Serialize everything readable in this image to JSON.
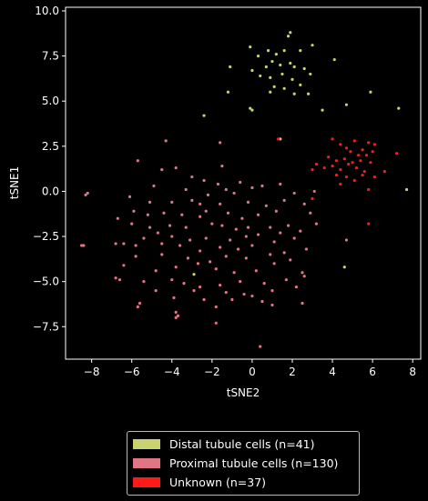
{
  "chart_data": {
    "type": "scatter",
    "xlabel": "tSNE2",
    "ylabel": "tSNE1",
    "xlim": [
      -9.3,
      8.4
    ],
    "ylim": [
      -9.3,
      10.2
    ],
    "xticks": [
      -8,
      -6,
      -4,
      -2,
      0,
      2,
      4,
      6,
      8
    ],
    "yticks": [
      -7.5,
      -5.0,
      -2.5,
      0.0,
      2.5,
      5.0,
      7.5,
      10.0
    ],
    "x_tick_labels": [
      "−8",
      "−6",
      "−4",
      "−2",
      "0",
      "2",
      "4",
      "6",
      "8"
    ],
    "y_tick_labels": [
      "−7.5",
      "−5.0",
      "−2.5",
      "0.0",
      "2.5",
      "5.0",
      "7.5",
      "10.0"
    ],
    "grid": false,
    "legend_position": "below",
    "series": [
      {
        "name": "Distal tubule cells (n=41)",
        "color": "#c8d26e",
        "points": [
          [
            -0.1,
            8.0
          ],
          [
            0.3,
            7.5
          ],
          [
            0.8,
            7.8
          ],
          [
            1.2,
            7.6
          ],
          [
            1.6,
            7.8
          ],
          [
            1.9,
            8.8
          ],
          [
            1.8,
            8.6
          ],
          [
            2.4,
            7.8
          ],
          [
            3.0,
            8.1
          ],
          [
            -1.1,
            6.9
          ],
          [
            0.0,
            6.7
          ],
          [
            0.7,
            6.9
          ],
          [
            1.0,
            7.2
          ],
          [
            1.4,
            7.0
          ],
          [
            1.9,
            7.1
          ],
          [
            2.1,
            6.9
          ],
          [
            2.6,
            6.8
          ],
          [
            4.1,
            7.3
          ],
          [
            0.4,
            6.4
          ],
          [
            0.9,
            6.3
          ],
          [
            1.5,
            6.5
          ],
          [
            2.0,
            6.2
          ],
          [
            2.9,
            6.5
          ],
          [
            1.1,
            5.8
          ],
          [
            1.6,
            5.7
          ],
          [
            2.4,
            5.9
          ],
          [
            0.9,
            5.5
          ],
          [
            2.1,
            5.4
          ],
          [
            -1.2,
            5.5
          ],
          [
            2.8,
            5.4
          ],
          [
            5.9,
            5.5
          ],
          [
            -0.1,
            4.6
          ],
          [
            0.0,
            4.5
          ],
          [
            3.5,
            4.5
          ],
          [
            4.7,
            4.8
          ],
          [
            7.3,
            4.6
          ],
          [
            -2.4,
            4.2
          ],
          [
            1.4,
            2.9
          ],
          [
            7.7,
            0.1
          ],
          [
            -2.9,
            -4.6
          ],
          [
            4.6,
            -4.2
          ]
        ]
      },
      {
        "name": "Proximal tubule cells (n=130)",
        "color": "#e07585",
        "points": [
          [
            -4.3,
            2.8
          ],
          [
            -1.6,
            2.7
          ],
          [
            -4.5,
            1.2
          ],
          [
            -3.8,
            1.3
          ],
          [
            -1.5,
            1.4
          ],
          [
            -5.7,
            1.7
          ],
          [
            -3.0,
            0.8
          ],
          [
            -2.4,
            0.6
          ],
          [
            -1.7,
            0.4
          ],
          [
            -0.6,
            0.5
          ],
          [
            0.5,
            0.3
          ],
          [
            -4.9,
            0.3
          ],
          [
            -3.3,
            0.1
          ],
          [
            -2.2,
            -0.2
          ],
          [
            -1.3,
            0.1
          ],
          [
            -0.9,
            -0.1
          ],
          [
            0.0,
            0.2
          ],
          [
            1.4,
            0.4
          ],
          [
            2.1,
            -0.1
          ],
          [
            3.1,
            0.0
          ],
          [
            -6.1,
            -0.3
          ],
          [
            -5.1,
            -0.6
          ],
          [
            -4.0,
            -0.6
          ],
          [
            -3.0,
            -0.5
          ],
          [
            -2.6,
            -0.7
          ],
          [
            -1.6,
            -0.7
          ],
          [
            -0.2,
            -0.6
          ],
          [
            0.7,
            -0.8
          ],
          [
            1.6,
            -0.5
          ],
          [
            2.6,
            -0.7
          ],
          [
            -6.7,
            -1.5
          ],
          [
            -5.9,
            -1.1
          ],
          [
            -5.2,
            -1.3
          ],
          [
            -4.4,
            -1.2
          ],
          [
            -3.5,
            -1.3
          ],
          [
            -2.3,
            -1.1
          ],
          [
            -1.2,
            -1.2
          ],
          [
            0.3,
            -1.3
          ],
          [
            1.2,
            -1.1
          ],
          [
            2.9,
            -1.2
          ],
          [
            -6.0,
            -1.8
          ],
          [
            -5.1,
            -2.0
          ],
          [
            -4.1,
            -1.9
          ],
          [
            -3.3,
            -2.0
          ],
          [
            -2.0,
            -1.8
          ],
          [
            -1.5,
            -1.9
          ],
          [
            -0.8,
            -2.1
          ],
          [
            -0.2,
            -2.0
          ],
          [
            0.9,
            -2.0
          ],
          [
            1.8,
            -1.9
          ],
          [
            2.4,
            -2.2
          ],
          [
            3.2,
            -1.8
          ],
          [
            -6.4,
            -2.9
          ],
          [
            -5.4,
            -2.6
          ],
          [
            -4.7,
            -2.3
          ],
          [
            -4.0,
            -2.5
          ],
          [
            -3.1,
            -2.7
          ],
          [
            -2.3,
            -2.6
          ],
          [
            -1.1,
            -2.7
          ],
          [
            -0.3,
            -2.5
          ],
          [
            0.3,
            -2.4
          ],
          [
            1.1,
            -2.8
          ],
          [
            2.1,
            -2.6
          ],
          [
            -6.8,
            -2.9
          ],
          [
            -5.8,
            -3.0
          ],
          [
            -4.5,
            -2.9
          ],
          [
            -3.6,
            -3.0
          ],
          [
            -2.6,
            -3.3
          ],
          [
            -1.6,
            -3.1
          ],
          [
            -0.7,
            -3.2
          ],
          [
            0.0,
            -3.0
          ],
          [
            1.6,
            -3.4
          ],
          [
            2.7,
            -3.2
          ],
          [
            4.7,
            -2.7
          ],
          [
            -5.8,
            -3.6
          ],
          [
            -4.5,
            -3.5
          ],
          [
            -3.2,
            -3.7
          ],
          [
            -2.1,
            -3.9
          ],
          [
            -1.3,
            -3.6
          ],
          [
            -0.3,
            -3.7
          ],
          [
            0.9,
            -3.5
          ],
          [
            1.9,
            -3.8
          ],
          [
            -6.4,
            -4.1
          ],
          [
            -4.8,
            -4.4
          ],
          [
            -3.8,
            -4.2
          ],
          [
            -2.7,
            -4.0
          ],
          [
            -1.8,
            -4.3
          ],
          [
            -0.9,
            -4.5
          ],
          [
            0.2,
            -4.4
          ],
          [
            1.1,
            -4.0
          ],
          [
            2.5,
            -4.5
          ],
          [
            -6.6,
            -4.9
          ],
          [
            -5.4,
            -5.0
          ],
          [
            -4.0,
            -4.9
          ],
          [
            -3.4,
            -5.1
          ],
          [
            -2.6,
            -5.3
          ],
          [
            -1.6,
            -5.2
          ],
          [
            -0.6,
            -5.0
          ],
          [
            0.6,
            -5.1
          ],
          [
            1.7,
            -4.9
          ],
          [
            2.6,
            -4.7
          ],
          [
            -6.8,
            -4.8
          ],
          [
            -4.8,
            -5.5
          ],
          [
            -2.9,
            -5.5
          ],
          [
            -1.3,
            -5.6
          ],
          [
            0.0,
            -5.8
          ],
          [
            1.0,
            -5.5
          ],
          [
            2.2,
            -5.3
          ],
          [
            -3.9,
            -5.9
          ],
          [
            -2.4,
            -6.0
          ],
          [
            -1.0,
            -6.0
          ],
          [
            -0.4,
            -5.7
          ],
          [
            0.5,
            -6.1
          ],
          [
            -5.6,
            -6.2
          ],
          [
            -5.7,
            -6.4
          ],
          [
            -1.8,
            -6.4
          ],
          [
            1.0,
            -6.3
          ],
          [
            2.5,
            -6.2
          ],
          [
            -3.8,
            -6.7
          ],
          [
            -3.7,
            -6.9
          ],
          [
            -3.8,
            -7.0
          ],
          [
            -1.8,
            -7.3
          ],
          [
            0.4,
            -8.6
          ],
          [
            -8.3,
            -0.2
          ],
          [
            -8.2,
            -0.1
          ],
          [
            -8.4,
            -3.0
          ],
          [
            -8.5,
            -3.0
          ],
          [
            -2.6,
            -1.4
          ],
          [
            -0.5,
            -1.5
          ],
          [
            1.4,
            -2.3
          ]
        ]
      },
      {
        "name": "Unknown (n=37)",
        "color": "#ff1a1a",
        "points": [
          [
            1.3,
            2.9
          ],
          [
            4.0,
            2.9
          ],
          [
            4.4,
            2.6
          ],
          [
            4.7,
            2.4
          ],
          [
            5.1,
            2.8
          ],
          [
            5.5,
            2.3
          ],
          [
            5.8,
            2.7
          ],
          [
            6.0,
            2.2
          ],
          [
            4.9,
            2.2
          ],
          [
            5.3,
            2.0
          ],
          [
            5.7,
            2.0
          ],
          [
            6.1,
            2.6
          ],
          [
            7.2,
            2.1
          ],
          [
            3.8,
            1.9
          ],
          [
            4.2,
            1.7
          ],
          [
            4.6,
            1.8
          ],
          [
            5.0,
            1.6
          ],
          [
            5.4,
            1.7
          ],
          [
            5.9,
            1.6
          ],
          [
            3.2,
            1.5
          ],
          [
            3.6,
            1.3
          ],
          [
            4.0,
            1.4
          ],
          [
            4.4,
            1.2
          ],
          [
            4.8,
            1.5
          ],
          [
            5.2,
            1.3
          ],
          [
            5.6,
            1.1
          ],
          [
            3.0,
            1.2
          ],
          [
            4.2,
            0.9
          ],
          [
            4.7,
            0.8
          ],
          [
            5.1,
            0.6
          ],
          [
            5.5,
            0.9
          ],
          [
            6.1,
            0.8
          ],
          [
            6.6,
            1.1
          ],
          [
            4.4,
            0.4
          ],
          [
            5.8,
            0.1
          ],
          [
            3.0,
            -0.4
          ],
          [
            5.8,
            -1.8
          ]
        ]
      }
    ]
  }
}
